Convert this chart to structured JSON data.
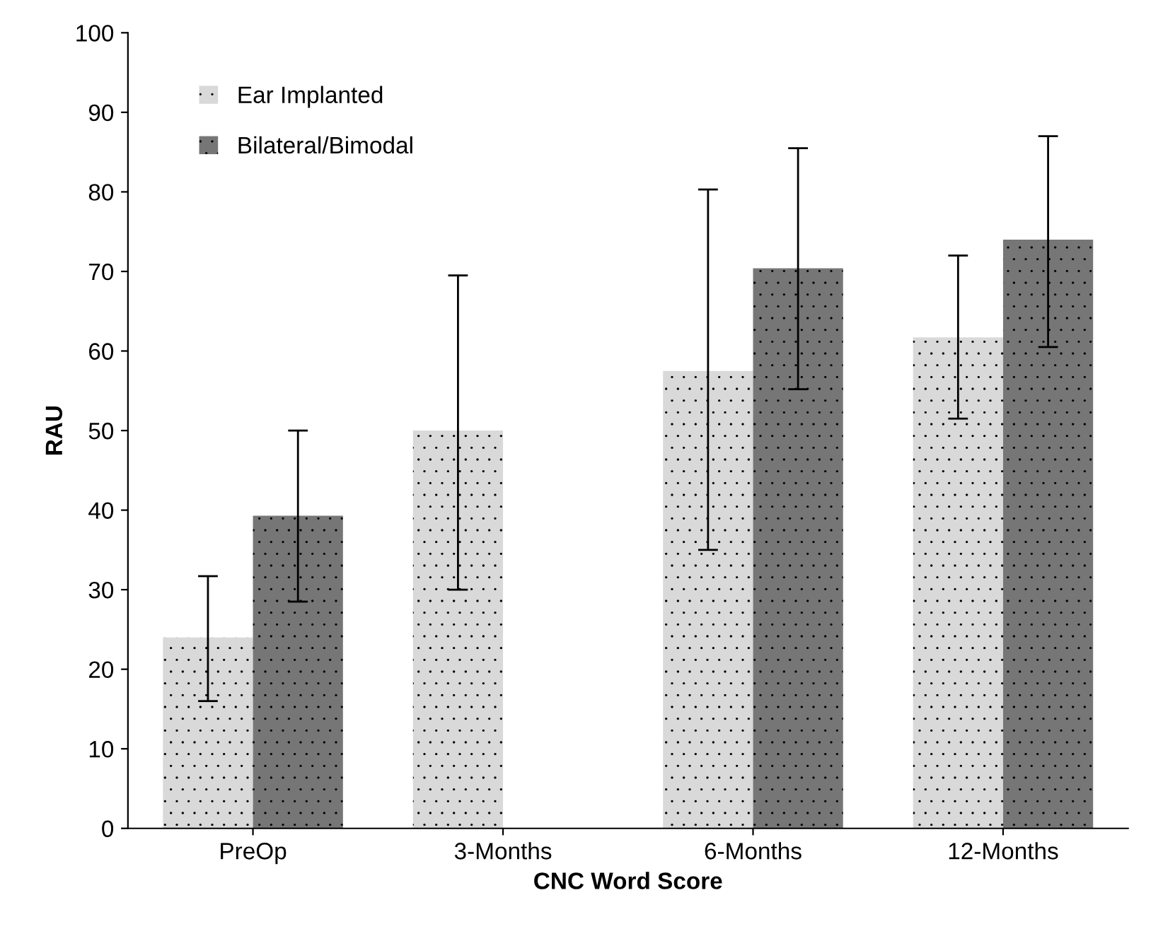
{
  "chart_data": {
    "type": "bar",
    "xlabel": "CNC Word Score",
    "ylabel": "RAU",
    "categories": [
      "PreOp",
      "3-Months",
      "6-Months",
      "12-Months"
    ],
    "series": [
      {
        "name": "Ear Implanted",
        "color": "#d9d9d9",
        "values": [
          24,
          50,
          57.5,
          61.7
        ],
        "errors": [
          [
            16,
            31.7
          ],
          [
            30,
            69.5
          ],
          [
            35,
            80.3
          ],
          [
            51.5,
            72
          ]
        ]
      },
      {
        "name": "Bilateral/Bimodal",
        "color": "#767676",
        "values": [
          39.3,
          null,
          70.4,
          74
        ],
        "errors": [
          [
            28.5,
            50
          ],
          null,
          [
            55.2,
            85.5
          ],
          [
            60.5,
            87
          ]
        ]
      }
    ],
    "ylim": [
      0,
      100
    ],
    "yticks": [
      0,
      10,
      20,
      30,
      40,
      50,
      60,
      70,
      80,
      90,
      100
    ],
    "grid": false,
    "legend": "top left"
  }
}
